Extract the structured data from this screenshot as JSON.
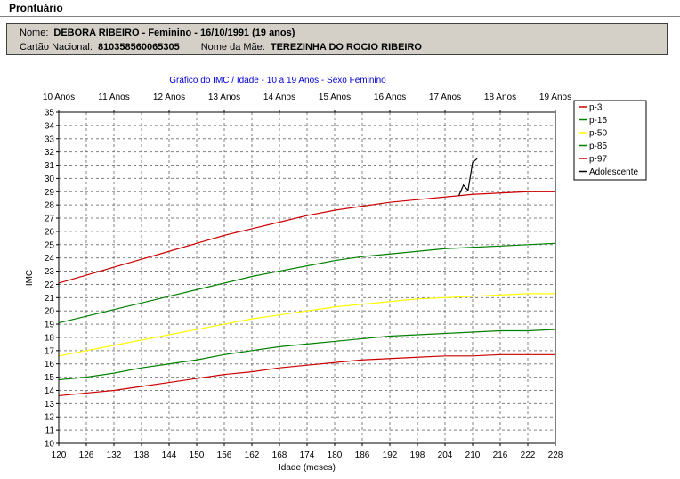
{
  "page": {
    "title": "Prontuário"
  },
  "patient": {
    "name_label": "Nome:",
    "name_value": "DEBORA RIBEIRO - Feminino - 16/10/1991 (19 anos)",
    "card_label": "Cartão Nacional:",
    "card_value": "810358560065305",
    "mother_label": "Nome da Mãe:",
    "mother_value": "TEREZINHA DO ROCIO RIBEIRO"
  },
  "colors": {
    "p3": "#cc0000",
    "p15": "#008000",
    "p50": "#ffff00",
    "p85": "#008000",
    "p97": "#cc0000",
    "adolescente": "#000000",
    "grid": "#808080"
  },
  "chart_data": {
    "type": "line",
    "title": "Gráfico do IMC / Idade - 10 a 19 Anos - Sexo Feminino",
    "xlabel": "Idade (meses)",
    "ylabel": "IMC",
    "xlim": [
      120,
      228
    ],
    "ylim": [
      10,
      35
    ],
    "grid": true,
    "legend_position": "right",
    "x_ticks": [
      120,
      126,
      132,
      138,
      144,
      150,
      156,
      162,
      168,
      174,
      180,
      186,
      192,
      198,
      204,
      210,
      216,
      222,
      228
    ],
    "y_ticks": [
      10,
      11,
      12,
      13,
      14,
      15,
      16,
      17,
      18,
      19,
      20,
      21,
      22,
      23,
      24,
      25,
      26,
      27,
      28,
      29,
      30,
      31,
      32,
      33,
      34,
      35
    ],
    "top_axis": {
      "labels": [
        "10 Anos",
        "11 Anos",
        "12 Anos",
        "13 Anos",
        "14 Anos",
        "15 Anos",
        "16 Anos",
        "17 Anos",
        "18 Anos",
        "19 Anos"
      ],
      "values": [
        120,
        132,
        144,
        156,
        168,
        180,
        192,
        204,
        216,
        228
      ]
    },
    "x": [
      120,
      126,
      132,
      138,
      144,
      150,
      156,
      162,
      168,
      174,
      180,
      186,
      192,
      198,
      204,
      210,
      216,
      222,
      228
    ],
    "series": [
      {
        "name": "p-3",
        "color_key": "p3",
        "values": [
          13.6,
          13.8,
          14.0,
          14.3,
          14.6,
          14.9,
          15.2,
          15.4,
          15.7,
          15.9,
          16.1,
          16.3,
          16.4,
          16.5,
          16.6,
          16.6,
          16.7,
          16.7,
          16.7
        ]
      },
      {
        "name": "p-15",
        "color_key": "p15",
        "values": [
          14.8,
          15.0,
          15.3,
          15.7,
          16.0,
          16.3,
          16.7,
          17.0,
          17.3,
          17.5,
          17.7,
          17.9,
          18.1,
          18.2,
          18.3,
          18.4,
          18.5,
          18.5,
          18.6
        ]
      },
      {
        "name": "p-50",
        "color_key": "p50",
        "values": [
          16.6,
          17.0,
          17.4,
          17.8,
          18.2,
          18.6,
          19.0,
          19.4,
          19.7,
          20.0,
          20.3,
          20.5,
          20.7,
          20.9,
          21.0,
          21.1,
          21.2,
          21.3,
          21.3
        ]
      },
      {
        "name": "p-85",
        "color_key": "p85",
        "values": [
          19.1,
          19.6,
          20.1,
          20.6,
          21.1,
          21.6,
          22.1,
          22.6,
          23.0,
          23.4,
          23.8,
          24.1,
          24.3,
          24.5,
          24.7,
          24.8,
          24.9,
          25.0,
          25.1
        ]
      },
      {
        "name": "p-97",
        "color_key": "p97",
        "values": [
          22.1,
          22.7,
          23.3,
          23.9,
          24.5,
          25.1,
          25.7,
          26.2,
          26.7,
          27.2,
          27.6,
          27.9,
          28.2,
          28.4,
          28.6,
          28.8,
          28.9,
          29.0,
          29.0
        ]
      },
      {
        "name": "Adolescente",
        "color_key": "adolescente",
        "points": [
          [
            207,
            28.7
          ],
          [
            208,
            29.5
          ],
          [
            209,
            29.1
          ],
          [
            210,
            31.2
          ],
          [
            211,
            31.5
          ]
        ]
      }
    ]
  }
}
